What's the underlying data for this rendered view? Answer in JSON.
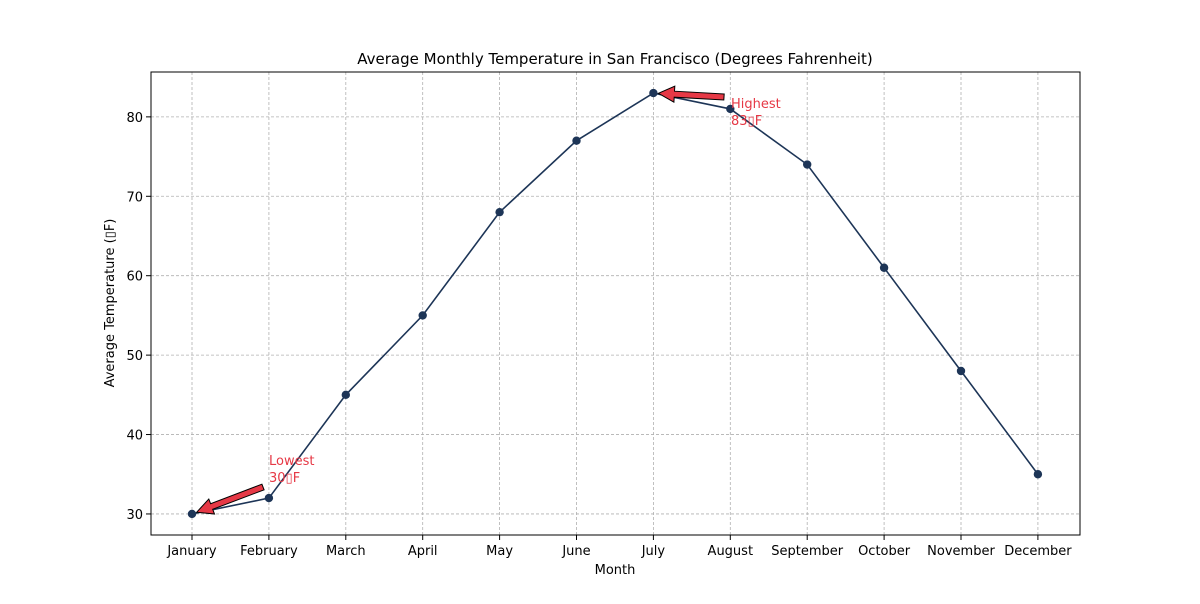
{
  "chart_data": {
    "type": "line",
    "title": "Average Monthly Temperature in San Francisco (Degrees Fahrenheit)",
    "xlabel": "Month",
    "ylabel": "Average Temperature (▯F)",
    "categories": [
      "January",
      "February",
      "March",
      "April",
      "May",
      "June",
      "July",
      "August",
      "September",
      "October",
      "November",
      "December"
    ],
    "values": [
      30,
      32,
      45,
      55,
      68,
      77,
      83,
      81,
      74,
      61,
      48,
      35
    ],
    "ylim": [
      27.35,
      85.65
    ],
    "yticks": [
      30,
      40,
      50,
      60,
      70,
      80
    ],
    "grid": true,
    "line_color": "#1d3557",
    "annotation_color": "#e63946",
    "annotations": [
      {
        "name": "lowest",
        "line1": "Lowest",
        "line2": "30▯F",
        "category": "January",
        "value": 30
      },
      {
        "name": "highest",
        "line1": "Highest",
        "line2": "83▯F",
        "category": "July",
        "value": 83
      }
    ]
  }
}
